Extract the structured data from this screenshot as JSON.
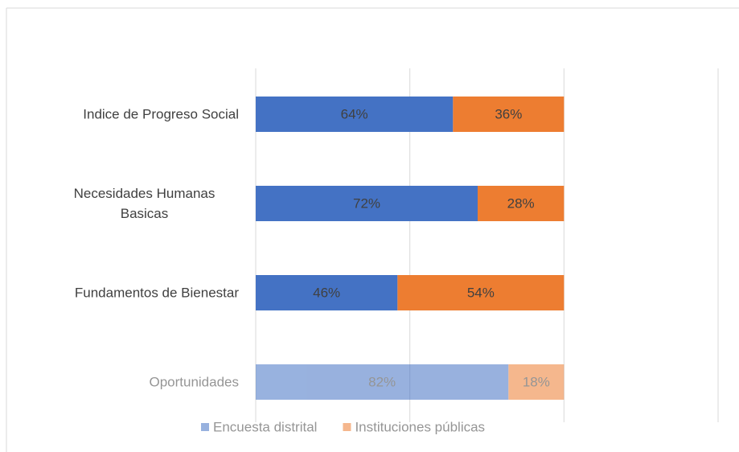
{
  "chart_data": {
    "type": "stacked-barh",
    "categories": [
      "Indice de Progreso Social",
      "Necesidades Humanas Basicas",
      "Fundamentos de Bienestar",
      "Oportunidades"
    ],
    "series": [
      {
        "name": "Encuesta distrital",
        "color": "#4472c4",
        "values": [
          64,
          72,
          46,
          82
        ],
        "value_labels": [
          "64%",
          "72%",
          "46%",
          "82%"
        ]
      },
      {
        "name": "Instituciones públicas",
        "color": "#ed7d31",
        "values": [
          36,
          28,
          54,
          18
        ],
        "value_labels": [
          "36%",
          "28%",
          "54%",
          "18%"
        ]
      }
    ],
    "xlim": [
      0,
      150
    ],
    "xticks": [
      0,
      50,
      100,
      150
    ],
    "grid": true,
    "legend": "bottom"
  }
}
